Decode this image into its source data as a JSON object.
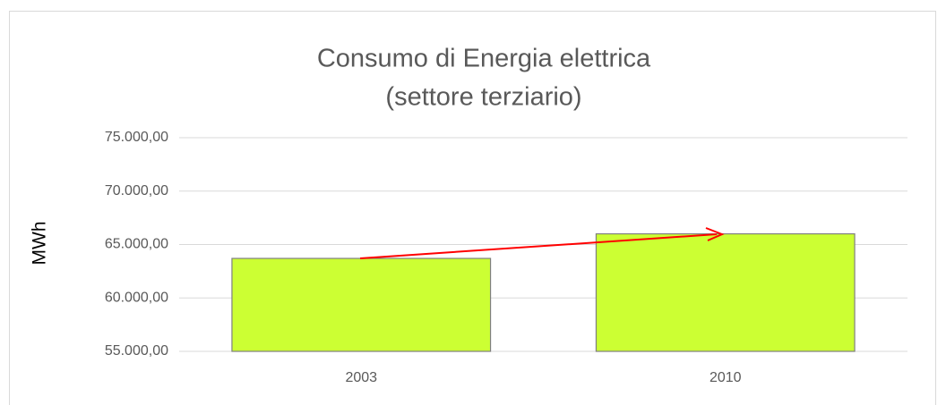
{
  "chart_data": {
    "type": "bar",
    "title": [
      "Consumo di Energia elettrica",
      "(settore terziario)"
    ],
    "y_label": "MWh",
    "categories": [
      "2003",
      "2010"
    ],
    "values": [
      63700,
      66000
    ],
    "color": "#ccff33",
    "ylim": [
      55000,
      75000
    ],
    "yticks": [
      {
        "value": 55000,
        "label": "55.000,00"
      },
      {
        "value": 60000,
        "label": "60.000,00"
      },
      {
        "value": 65000,
        "label": "65.000,00"
      },
      {
        "value": 70000,
        "label": "70.000,00"
      },
      {
        "value": 75000,
        "label": "75.000,00"
      }
    ],
    "grid": true
  }
}
